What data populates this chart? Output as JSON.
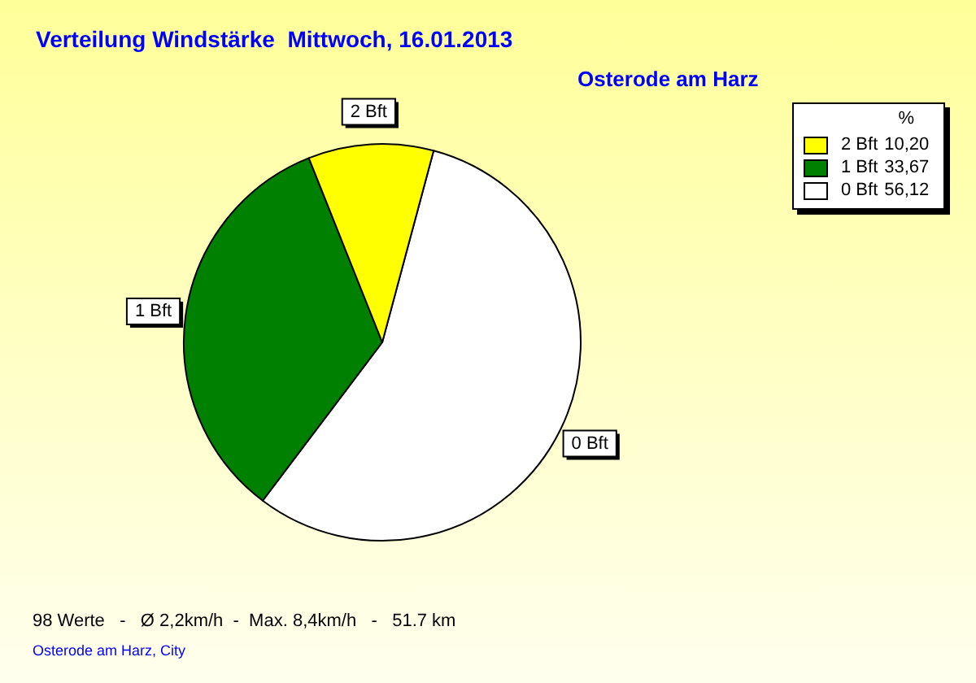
{
  "chart_data": {
    "type": "pie",
    "title": "Verteilung Windstärke  Mittwoch, 16.01.2013",
    "subtitle": "Osterode am Harz",
    "categories": [
      "2 Bft",
      "1 Bft",
      "0 Bft"
    ],
    "values": [
      10.2,
      33.67,
      56.12
    ],
    "value_labels": [
      "10,20",
      "33,67",
      "56,12"
    ],
    "colors": [
      "#ffff00",
      "#008000",
      "#ffffff"
    ],
    "legend": "top right",
    "legend_title": "%",
    "annotations": [
      "98 Werte   -   Ø 2,2km/h  -  Max. 8,4km/h   -   51.7 km",
      "Osterode am Harz, City"
    ]
  }
}
